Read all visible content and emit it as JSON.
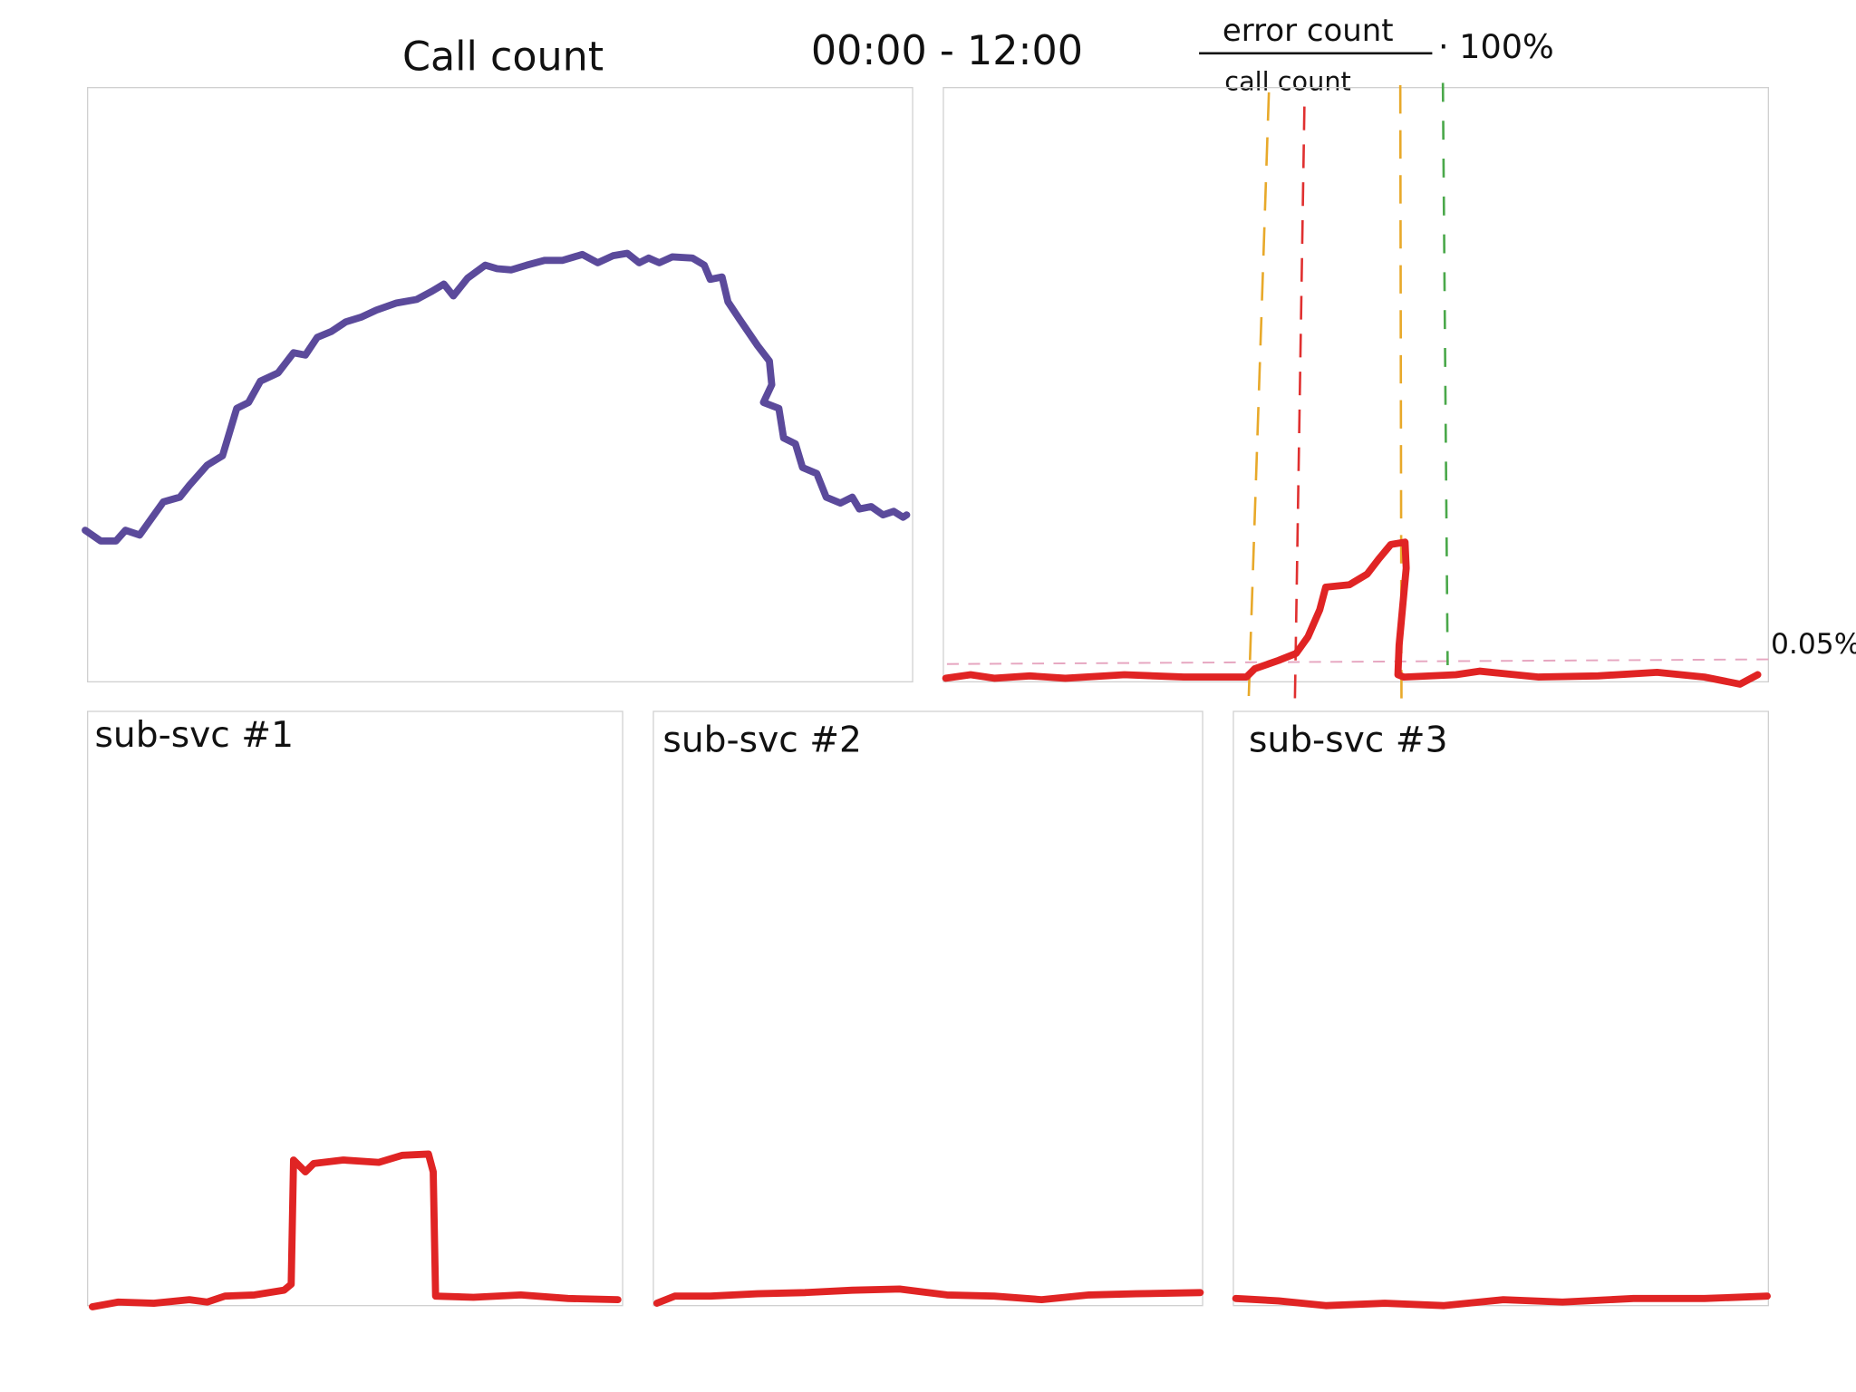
{
  "header": {
    "title": "Call count",
    "time_range": "00:00 - 12:00"
  },
  "formula": {
    "numerator": "error count",
    "denominator": "call count",
    "multiplier": "· 100%"
  },
  "threshold_label": "0.05%",
  "panels": [
    {
      "label": "sub-svc #1"
    },
    {
      "label": "sub-svc #2"
    },
    {
      "label": "sub-svc #3"
    }
  ]
}
